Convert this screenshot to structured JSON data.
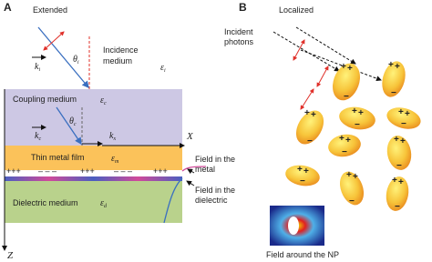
{
  "panel_a": {
    "letter": "A",
    "title": "Extended",
    "theta_i": {
      "symbol": "θ",
      "sub": "i"
    },
    "k_i": {
      "symbol": "k",
      "sub": "i"
    },
    "incidence_medium": [
      "Incidence",
      "medium"
    ],
    "eps_i": {
      "symbol": "ε",
      "sub": "i"
    },
    "coupling_medium": "Coupling medium",
    "eps_c": {
      "symbol": "ε",
      "sub": "c"
    },
    "theta_c": {
      "symbol": "θ",
      "sub": "c"
    },
    "k_c": {
      "symbol": "k",
      "sub": "c"
    },
    "k_x": {
      "symbol": "k",
      "sub": "x"
    },
    "x_axis": "X",
    "thin_film": "Thin metal film",
    "eps_m": {
      "symbol": "ε",
      "sub": "m"
    },
    "charges": [
      "+++",
      "– – –",
      "+++",
      "– – –",
      "+++"
    ],
    "field_metal": [
      "Field in the",
      "metal"
    ],
    "dielectric_medium": "Dielectric medium",
    "eps_d": {
      "symbol": "ε",
      "sub": "d"
    },
    "field_dielectric": [
      "Field in the",
      "dielectric"
    ],
    "z_axis": "Z"
  },
  "panel_b": {
    "letter": "B",
    "title": "Localized",
    "incident_photons": [
      "Incident",
      "photons"
    ],
    "charge_signs": {
      "plus": "+",
      "minus": "−"
    },
    "inset_caption": "Field around the NP"
  }
}
